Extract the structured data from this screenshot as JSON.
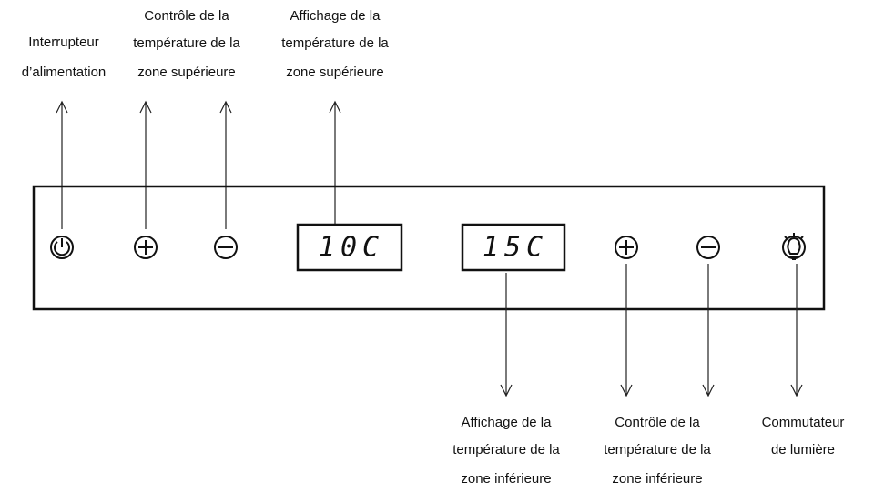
{
  "callouts_top": [
    {
      "lines": [
        "Interrupteur",
        "d’alimentation"
      ]
    },
    {
      "lines": [
        "Contrôle de la",
        "température de la",
        "zone supérieure"
      ]
    },
    {
      "lines": [
        "Affichage de la",
        "température de la",
        "zone supérieure"
      ]
    }
  ],
  "displays": [
    "10C",
    "15C"
  ],
  "callouts_bottom": [
    {
      "lines": [
        "Affichage de la",
        "température de la",
        "zone inférieure"
      ]
    },
    {
      "lines": [
        "Contrôle de la",
        "température de la",
        "zone inférieure"
      ]
    },
    {
      "lines": [
        "Commutateur",
        "de lumière"
      ]
    }
  ]
}
